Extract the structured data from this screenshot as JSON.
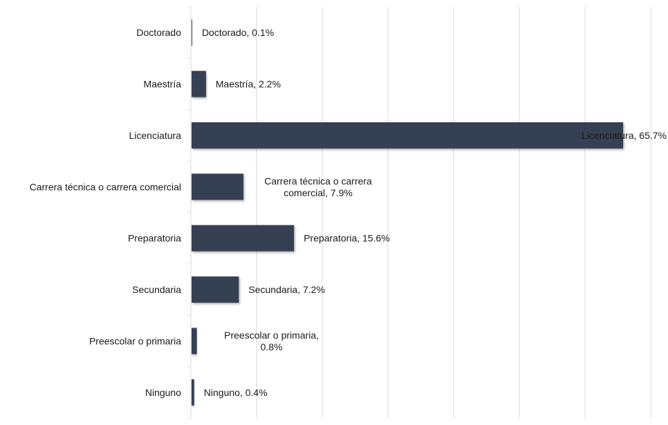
{
  "chart_data": {
    "type": "bar",
    "orientation": "horizontal",
    "categories": [
      "Doctorado",
      "Maestría",
      "Licenciatura",
      "Carrera técnica o carrera comercial",
      "Preparatoria",
      "Secundaria",
      "Preescolar o primaria",
      "Ninguno"
    ],
    "values": [
      0.1,
      2.2,
      65.7,
      7.9,
      15.6,
      7.2,
      0.8,
      0.4
    ],
    "data_labels": [
      [
        "Doctorado, 0.1%"
      ],
      [
        "Maestría, 2.2%"
      ],
      [
        "Licenciatura, 65.7%"
      ],
      [
        "Carrera técnica o carrera",
        "comercial, 7.9%"
      ],
      [
        "Preparatoria, 15.6%"
      ],
      [
        "Secundaria, 7.2%"
      ],
      [
        "Preescolar o primaria,",
        "0.8%"
      ],
      [
        "Ninguno, 0.4%"
      ]
    ],
    "title": "",
    "xlabel": "",
    "ylabel": "",
    "xlim": [
      0,
      70
    ],
    "grid": "vertical",
    "legend": "none",
    "bar_color": "#353f52"
  }
}
